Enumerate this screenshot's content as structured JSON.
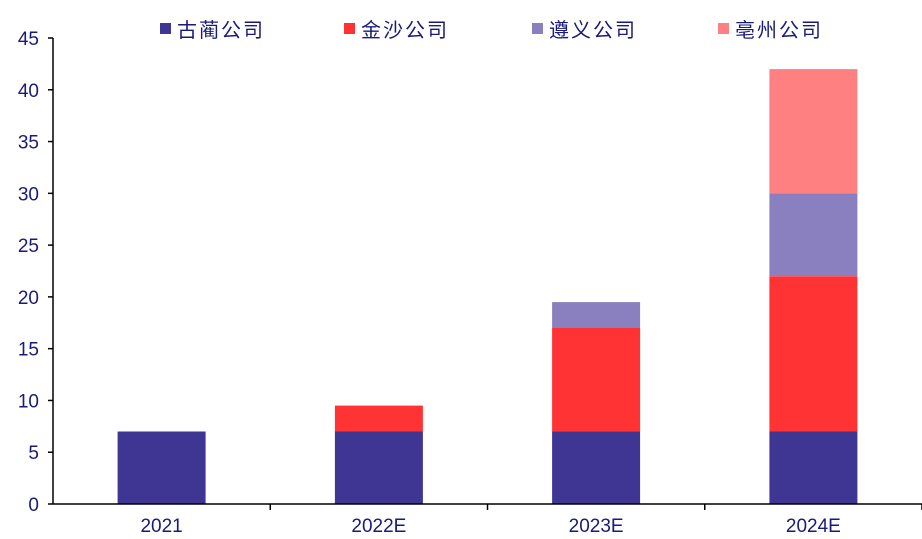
{
  "chart_data": {
    "type": "bar",
    "stacked": true,
    "categories": [
      "2021",
      "2022E",
      "2023E",
      "2024E"
    ],
    "series": [
      {
        "name": "古蔺公司",
        "color": "#3f3592",
        "values": [
          7,
          7,
          7,
          7
        ]
      },
      {
        "name": "金沙公司",
        "color": "#ff3333",
        "values": [
          0,
          2.5,
          10,
          15
        ]
      },
      {
        "name": "遵义公司",
        "color": "#8a80c0",
        "values": [
          0,
          0,
          2.5,
          8
        ]
      },
      {
        "name": "亳州公司",
        "color": "#ff8080",
        "values": [
          0,
          0,
          0,
          12
        ]
      }
    ],
    "ylim": [
      0,
      45
    ],
    "yticks": [
      0,
      5,
      10,
      15,
      20,
      25,
      30,
      35,
      40,
      45
    ],
    "xlabel": "",
    "ylabel": "",
    "title": "",
    "legend_position": "top",
    "grid": false
  }
}
